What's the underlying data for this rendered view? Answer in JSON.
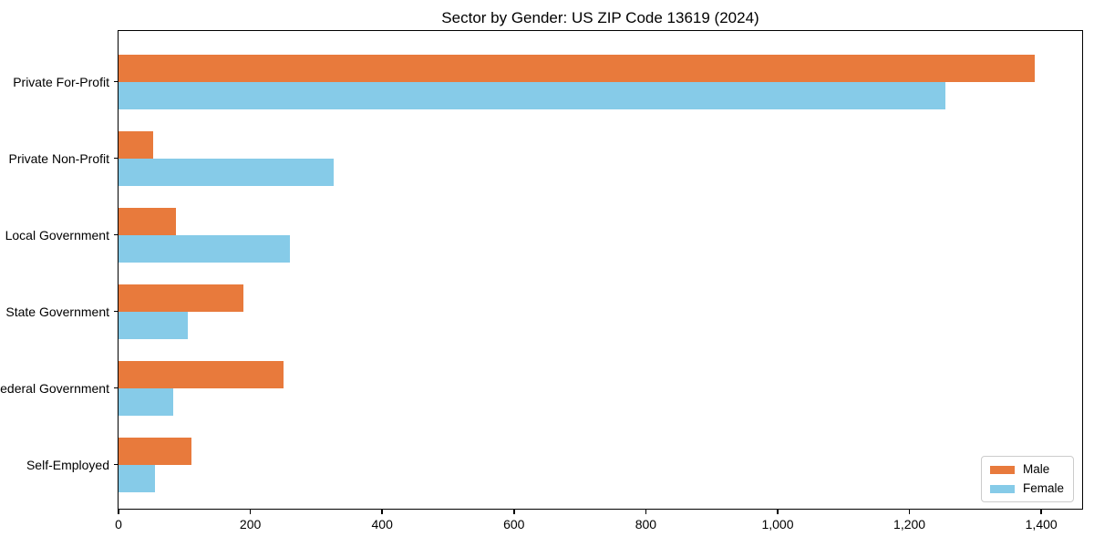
{
  "chart_data": {
    "type": "bar",
    "orientation": "horizontal",
    "title": "Sector by Gender: US ZIP Code 13619 (2024)",
    "categories": [
      "Private For-Profit",
      "Private Non-Profit",
      "Local Government",
      "State Government",
      "Federal Government",
      "Self-Employed"
    ],
    "series": [
      {
        "name": "Male",
        "color": "#E87A3C",
        "values": [
          1390,
          53,
          87,
          189,
          250,
          110
        ]
      },
      {
        "name": "Female",
        "color": "#86CBE8",
        "values": [
          1255,
          327,
          260,
          105,
          83,
          55
        ]
      }
    ],
    "xlabel": "",
    "ylabel": "",
    "xlim": [
      0,
      1462
    ],
    "x_tick_values": [
      0,
      200,
      400,
      600,
      800,
      1000,
      1200,
      1400
    ],
    "x_tick_labels": [
      "0",
      "200",
      "400",
      "600",
      "800",
      "1,000",
      "1,200",
      "1,400"
    ],
    "grid": false,
    "legend": {
      "position": "lower right",
      "entries": [
        "Male",
        "Female"
      ]
    },
    "colors": {
      "male": "#E87A3C",
      "female": "#86CBE8",
      "text": "#000000",
      "spine": "#000000",
      "legend_border": "#cccccc",
      "background": "#ffffff"
    }
  }
}
